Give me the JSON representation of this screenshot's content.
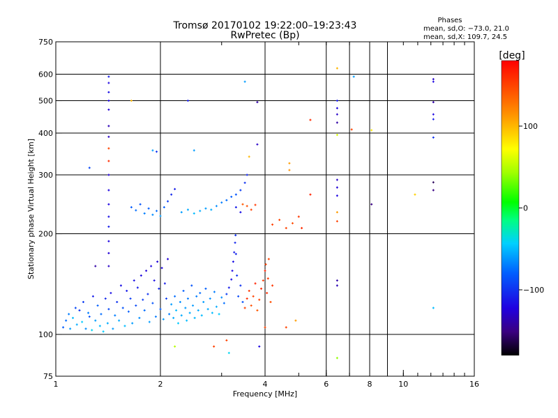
{
  "chart_data": {
    "type": "scatter",
    "title": "Tromsø 20170102 19:22:00–19:23:43",
    "subtitle": "RwPretec (Bp)",
    "xlabel": "Frequency [MHz]",
    "ylabel": "Stationary phase Virtual Height [km]",
    "x_scale": "log",
    "y_scale": "log",
    "xlim": [
      1,
      16
    ],
    "ylim": [
      75,
      750
    ],
    "x_ticks": [
      1,
      2,
      4,
      6,
      8,
      10,
      16
    ],
    "x_tick_labels": [
      "1",
      "2",
      "4",
      "6",
      "8",
      "10",
      "16"
    ],
    "x_major_grid": [
      2,
      4,
      6,
      7,
      8,
      9
    ],
    "x_minor_ticks": [
      3,
      5,
      6,
      7,
      8,
      9,
      10,
      11,
      12,
      13,
      14,
      15
    ],
    "y_ticks": [
      75,
      100,
      200,
      300,
      400,
      500,
      600,
      750
    ],
    "y_tick_labels": [
      "75",
      "100",
      "200",
      "300",
      "400",
      "500",
      "600",
      "750"
    ],
    "grid": true,
    "legend_box": {
      "title": "Phases",
      "line1": "mean, sd,O: −73.0, 21.0",
      "line2": "mean, sd,X: 109.7, 24.5"
    },
    "colorbar": {
      "label": "[deg]",
      "range": [
        -180,
        180
      ],
      "ticks": [
        100,
        0,
        -100
      ],
      "tick_labels": [
        "100",
        "0",
        "−100"
      ],
      "colormap": "rainbow-black-to-red"
    },
    "points": [
      [
        1.05,
        105,
        -80
      ],
      [
        1.07,
        110,
        -75
      ],
      [
        1.09,
        115,
        -70
      ],
      [
        1.1,
        104,
        -60
      ],
      [
        1.12,
        112,
        -50
      ],
      [
        1.14,
        120,
        -90
      ],
      [
        1.15,
        107,
        -55
      ],
      [
        1.17,
        118,
        -100
      ],
      [
        1.19,
        109,
        -45
      ],
      [
        1.2,
        125,
        -95
      ],
      [
        1.22,
        104,
        -65
      ],
      [
        1.24,
        116,
        -70
      ],
      [
        1.25,
        113,
        -85
      ],
      [
        1.27,
        103,
        -40
      ],
      [
        1.28,
        130,
        -110
      ],
      [
        1.3,
        110,
        -60
      ],
      [
        1.32,
        122,
        -80
      ],
      [
        1.34,
        106,
        -50
      ],
      [
        1.35,
        115,
        -75
      ],
      [
        1.37,
        102,
        -45
      ],
      [
        1.39,
        128,
        -105
      ],
      [
        1.41,
        108,
        -55
      ],
      [
        1.42,
        119,
        -90
      ],
      [
        1.44,
        133,
        -115
      ],
      [
        1.46,
        104,
        -60
      ],
      [
        1.48,
        114,
        -70
      ],
      [
        1.5,
        125,
        -100
      ],
      [
        1.52,
        110,
        -55
      ],
      [
        1.54,
        140,
        -115
      ],
      [
        1.56,
        120,
        -85
      ],
      [
        1.58,
        106,
        -50
      ],
      [
        1.6,
        135,
        -110
      ],
      [
        1.62,
        117,
        -80
      ],
      [
        1.64,
        128,
        -95
      ],
      [
        1.66,
        108,
        -60
      ],
      [
        1.68,
        145,
        -115
      ],
      [
        1.7,
        122,
        -90
      ],
      [
        1.72,
        138,
        -110
      ],
      [
        1.74,
        112,
        -65
      ],
      [
        1.76,
        150,
        -120
      ],
      [
        1.78,
        127,
        -95
      ],
      [
        1.8,
        118,
        -75
      ],
      [
        1.82,
        155,
        -125
      ],
      [
        1.84,
        132,
        -100
      ],
      [
        1.86,
        109,
        -60
      ],
      [
        1.88,
        160,
        -120
      ],
      [
        1.9,
        124,
        -85
      ],
      [
        1.92,
        145,
        -115
      ],
      [
        1.94,
        113,
        -70
      ],
      [
        1.96,
        165,
        -125
      ],
      [
        1.98,
        137,
        -105
      ],
      [
        2.0,
        119,
        -80
      ],
      [
        2.02,
        158,
        -120
      ],
      [
        2.04,
        111,
        -60
      ],
      [
        2.06,
        142,
        -110
      ],
      [
        2.08,
        128,
        -95
      ],
      [
        2.1,
        168,
        -125
      ],
      [
        2.12,
        115,
        -70
      ],
      [
        2.15,
        123,
        -60
      ],
      [
        2.18,
        112,
        -55
      ],
      [
        2.2,
        130,
        -75
      ],
      [
        2.22,
        118,
        -50
      ],
      [
        2.25,
        108,
        -45
      ],
      [
        2.28,
        125,
        -65
      ],
      [
        2.3,
        114,
        -55
      ],
      [
        2.33,
        135,
        -80
      ],
      [
        2.36,
        120,
        -60
      ],
      [
        2.38,
        110,
        -50
      ],
      [
        2.4,
        128,
        -70
      ],
      [
        2.43,
        116,
        -55
      ],
      [
        2.46,
        140,
        -85
      ],
      [
        2.48,
        122,
        -60
      ],
      [
        2.51,
        112,
        -50
      ],
      [
        2.54,
        130,
        -70
      ],
      [
        2.57,
        118,
        -55
      ],
      [
        2.6,
        133,
        -75
      ],
      [
        2.63,
        114,
        -50
      ],
      [
        2.66,
        125,
        -60
      ],
      [
        2.7,
        137,
        -80
      ],
      [
        2.74,
        119,
        -55
      ],
      [
        2.78,
        128,
        -65
      ],
      [
        2.82,
        116,
        -50
      ],
      [
        2.86,
        134,
        -70
      ],
      [
        2.9,
        121,
        -55
      ],
      [
        2.95,
        115,
        -45
      ],
      [
        3.0,
        129,
        -65
      ],
      [
        3.05,
        124,
        -75
      ],
      [
        3.1,
        132,
        -95
      ],
      [
        3.15,
        138,
        -110
      ],
      [
        3.2,
        146,
        -115
      ],
      [
        3.22,
        155,
        -120
      ],
      [
        3.24,
        165,
        -115
      ],
      [
        3.26,
        176,
        -110
      ],
      [
        3.28,
        188,
        -105
      ],
      [
        3.29,
        198,
        -100
      ],
      [
        3.3,
        174,
        -105
      ],
      [
        3.32,
        150,
        -100
      ],
      [
        3.35,
        130,
        -90
      ],
      [
        3.4,
        140,
        -100
      ],
      [
        3.45,
        125,
        -85
      ],
      [
        3.5,
        120,
        150
      ],
      [
        3.55,
        128,
        160
      ],
      [
        3.6,
        135,
        155
      ],
      [
        3.65,
        122,
        145
      ],
      [
        3.7,
        130,
        150
      ],
      [
        3.75,
        142,
        165
      ],
      [
        3.8,
        118,
        140
      ],
      [
        3.85,
        127,
        150
      ],
      [
        3.9,
        137,
        160
      ],
      [
        3.95,
        145,
        155
      ],
      [
        4.0,
        155,
        165
      ],
      [
        4.02,
        162,
        150
      ],
      [
        4.05,
        133,
        160
      ],
      [
        4.08,
        147,
        155
      ],
      [
        4.1,
        168,
        150
      ],
      [
        4.15,
        125,
        145
      ],
      [
        4.2,
        140,
        155
      ],
      [
        1.42,
        210,
        -110
      ],
      [
        1.42,
        225,
        -115
      ],
      [
        1.42,
        245,
        -120
      ],
      [
        1.42,
        270,
        -120
      ],
      [
        1.42,
        300,
        -125
      ],
      [
        1.42,
        330,
        160
      ],
      [
        1.42,
        360,
        150
      ],
      [
        1.42,
        390,
        -130
      ],
      [
        1.42,
        420,
        -135
      ],
      [
        1.42,
        470,
        -125
      ],
      [
        1.42,
        500,
        -120
      ],
      [
        1.42,
        530,
        -115
      ],
      [
        1.42,
        565,
        -120
      ],
      [
        1.42,
        590,
        -110
      ],
      [
        1.42,
        160,
        -130
      ],
      [
        1.42,
        175,
        -125
      ],
      [
        1.42,
        190,
        -120
      ],
      [
        1.65,
        240,
        -80
      ],
      [
        1.7,
        235,
        -75
      ],
      [
        1.75,
        245,
        -85
      ],
      [
        1.8,
        230,
        -70
      ],
      [
        1.85,
        238,
        -80
      ],
      [
        1.9,
        228,
        -65
      ],
      [
        1.95,
        234,
        -75
      ],
      [
        2.0,
        226,
        -60
      ],
      [
        2.05,
        240,
        -80
      ],
      [
        2.1,
        250,
        -95
      ],
      [
        2.15,
        262,
        -105
      ],
      [
        2.2,
        272,
        -110
      ],
      [
        2.3,
        232,
        -60
      ],
      [
        2.4,
        236,
        -55
      ],
      [
        2.5,
        230,
        -50
      ],
      [
        2.6,
        234,
        -55
      ],
      [
        2.7,
        238,
        -60
      ],
      [
        2.8,
        236,
        -55
      ],
      [
        2.9,
        242,
        -65
      ],
      [
        3.0,
        248,
        -70
      ],
      [
        3.1,
        252,
        -75
      ],
      [
        3.2,
        258,
        -80
      ],
      [
        3.3,
        262,
        -85
      ],
      [
        3.4,
        270,
        -95
      ],
      [
        3.5,
        284,
        -100
      ],
      [
        3.55,
        300,
        -105
      ],
      [
        3.3,
        240,
        -110
      ],
      [
        3.4,
        232,
        -115
      ],
      [
        3.45,
        245,
        140
      ],
      [
        3.55,
        242,
        145
      ],
      [
        3.65,
        236,
        150
      ],
      [
        3.75,
        244,
        155
      ],
      [
        4.2,
        213,
        150
      ],
      [
        4.4,
        220,
        150
      ],
      [
        4.6,
        208,
        150
      ],
      [
        4.8,
        215,
        145
      ],
      [
        5.0,
        225,
        155
      ],
      [
        5.1,
        208,
        160
      ],
      [
        5.4,
        262,
        165
      ],
      [
        4.7,
        325,
        110
      ],
      [
        4.7,
        310,
        115
      ],
      [
        5.4,
        438,
        160
      ],
      [
        3.8,
        370,
        -130
      ],
      [
        3.8,
        495,
        -140
      ],
      [
        2.4,
        500,
        -110
      ],
      [
        6.45,
        290,
        -130
      ],
      [
        6.45,
        275,
        -125
      ],
      [
        6.45,
        260,
        -120
      ],
      [
        6.45,
        232,
        110
      ],
      [
        6.45,
        218,
        150
      ],
      [
        6.45,
        395,
        60
      ],
      [
        6.45,
        430,
        -140
      ],
      [
        6.45,
        455,
        -130
      ],
      [
        6.45,
        475,
        -120
      ],
      [
        6.45,
        500,
        -110
      ],
      [
        6.45,
        625,
        100
      ],
      [
        6.45,
        145,
        -140
      ],
      [
        6.45,
        140,
        -135
      ],
      [
        6.45,
        85,
        40
      ],
      [
        7.1,
        410,
        150
      ],
      [
        7.2,
        590,
        -60
      ],
      [
        8.1,
        408,
        80
      ],
      [
        8.1,
        245,
        -150
      ],
      [
        10.8,
        262,
        90
      ],
      [
        12.2,
        580,
        -130
      ],
      [
        12.2,
        570,
        -120
      ],
      [
        12.2,
        495,
        -140
      ],
      [
        12.2,
        455,
        -120
      ],
      [
        12.2,
        440,
        -110
      ],
      [
        12.2,
        388,
        -100
      ],
      [
        12.2,
        285,
        -160
      ],
      [
        12.2,
        270,
        -150
      ],
      [
        12.2,
        120,
        -50
      ],
      [
        1.25,
        315,
        -90
      ],
      [
        1.3,
        160,
        -140
      ],
      [
        1.65,
        500,
        100
      ],
      [
        1.9,
        355,
        -60
      ],
      [
        1.95,
        352,
        -100
      ],
      [
        2.2,
        92,
        50
      ],
      [
        2.5,
        355,
        -60
      ],
      [
        2.85,
        92,
        150
      ],
      [
        3.1,
        96,
        150
      ],
      [
        3.15,
        88,
        -40
      ],
      [
        3.5,
        570,
        -60
      ],
      [
        3.6,
        340,
        100
      ],
      [
        3.85,
        92,
        -120
      ],
      [
        4.0,
        105,
        150
      ],
      [
        4.6,
        105,
        150
      ],
      [
        4.9,
        110,
        110
      ]
    ]
  }
}
